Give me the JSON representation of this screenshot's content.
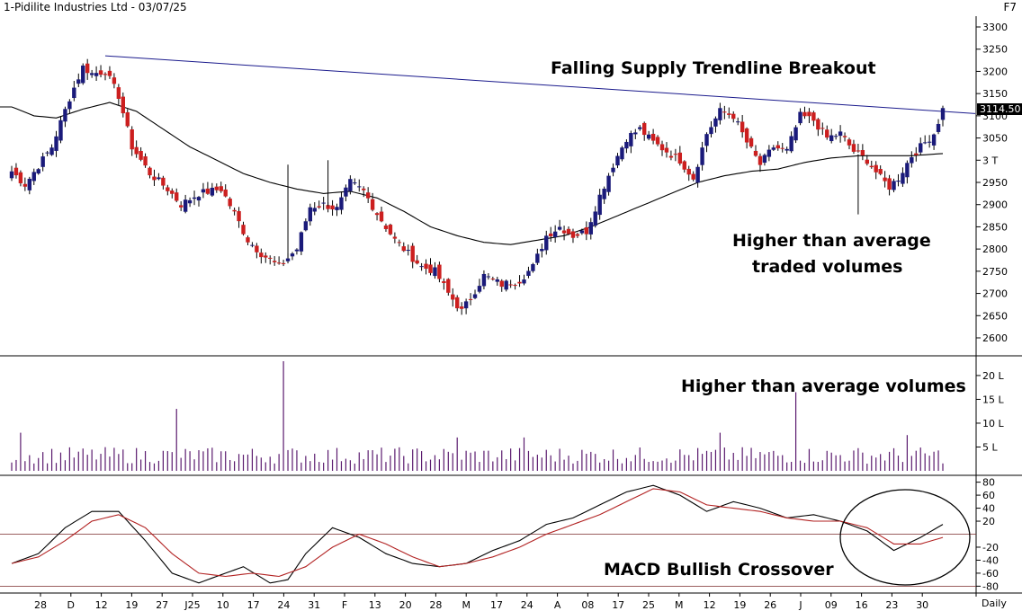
{
  "header": {
    "title": "1-Pidilite Industries Ltd - 03/07/25",
    "shortcut": "F7"
  },
  "annotations": {
    "trendline": "Falling Supply Trendline Breakout",
    "price_volume_1": "Higher than average",
    "price_volume_2": "traded volumes",
    "volume": "Higher than average volumes",
    "macd": "MACD Bullish Crossover"
  },
  "periodicity": "Daily",
  "colors": {
    "up_candle": "#1a1a7a",
    "down_candle": "#cc1f1f",
    "moving_average": "#000000",
    "trendline": "#1a1a8c",
    "macd_line": "#000000",
    "signal_line": "#b22222",
    "volume_bar": "#5a1a6e",
    "last_price_badge": "#000000"
  },
  "chart_data": [
    {
      "type": "candlestick",
      "panel": "price",
      "yticks": [
        3300,
        3250,
        3200,
        3150,
        3100,
        3050,
        3000,
        2950,
        2900,
        2850,
        2800,
        2750,
        2700,
        2650,
        2600
      ],
      "ytick_labels": [
        "3300",
        "3250",
        "3200",
        "3150",
        "3100",
        "3050",
        "3 T",
        "2950",
        "2900",
        "2850",
        "2800",
        "2750",
        "2700",
        "2650",
        "2600"
      ],
      "ylim": [
        2560,
        3320
      ],
      "last_price": "3114.50",
      "x_labels": [
        "28",
        "D",
        "12",
        "19",
        "27",
        "J25",
        "10",
        "17",
        "24",
        "31",
        "F",
        "13",
        "20",
        "28",
        "M",
        "17",
        "24",
        "A",
        "08",
        "17",
        "25",
        "M",
        "12",
        "19",
        "26",
        "J",
        "09",
        "16",
        "23",
        "30"
      ],
      "anchors": [
        [
          0,
          2975
        ],
        [
          3,
          2945
        ],
        [
          9,
          3030
        ],
        [
          13,
          3140
        ],
        [
          16,
          3210
        ],
        [
          18,
          3195
        ],
        [
          21,
          3200
        ],
        [
          24,
          3145
        ],
        [
          27,
          3030
        ],
        [
          31,
          2970
        ],
        [
          35,
          2935
        ],
        [
          38,
          2900
        ],
        [
          42,
          2925
        ],
        [
          47,
          2935
        ],
        [
          50,
          2880
        ],
        [
          53,
          2820
        ],
        [
          56,
          2790
        ],
        [
          60,
          2760
        ],
        [
          64,
          2800
        ],
        [
          67,
          2895
        ],
        [
          70,
          2900
        ],
        [
          73,
          2890
        ],
        [
          76,
          2950
        ],
        [
          79,
          2930
        ],
        [
          82,
          2880
        ],
        [
          86,
          2820
        ],
        [
          89,
          2790
        ],
        [
          92,
          2760
        ],
        [
          95,
          2750
        ],
        [
          98,
          2700
        ],
        [
          101,
          2660
        ],
        [
          103,
          2690
        ],
        [
          106,
          2740
        ],
        [
          110,
          2720
        ],
        [
          114,
          2730
        ],
        [
          117,
          2760
        ],
        [
          120,
          2830
        ],
        [
          123,
          2850
        ],
        [
          126,
          2830
        ],
        [
          129,
          2840
        ],
        [
          132,
          2920
        ],
        [
          135,
          2990
        ],
        [
          138,
          3050
        ],
        [
          141,
          3070
        ],
        [
          144,
          3040
        ],
        [
          147,
          3020
        ],
        [
          150,
          3000
        ],
        [
          153,
          2960
        ],
        [
          156,
          3060
        ],
        [
          159,
          3110
        ],
        [
          162,
          3100
        ],
        [
          165,
          3040
        ],
        [
          168,
          2990
        ],
        [
          171,
          3030
        ],
        [
          174,
          3020
        ],
        [
          177,
          3100
        ],
        [
          180,
          3090
        ],
        [
          183,
          3050
        ],
        [
          186,
          3060
        ],
        [
          189,
          3020
        ],
        [
          192,
          3000
        ],
        [
          195,
          2960
        ],
        [
          197,
          2940
        ],
        [
          199,
          2960
        ],
        [
          202,
          3010
        ],
        [
          205,
          3040
        ],
        [
          207,
          3060
        ],
        [
          209,
          3114.5
        ]
      ],
      "ma_anchors": [
        [
          0,
          3120
        ],
        [
          5,
          3100
        ],
        [
          10,
          3095
        ],
        [
          16,
          3115
        ],
        [
          22,
          3130
        ],
        [
          28,
          3110
        ],
        [
          34,
          3070
        ],
        [
          40,
          3030
        ],
        [
          46,
          3000
        ],
        [
          52,
          2970
        ],
        [
          58,
          2950
        ],
        [
          64,
          2935
        ],
        [
          70,
          2925
        ],
        [
          76,
          2930
        ],
        [
          82,
          2915
        ],
        [
          88,
          2885
        ],
        [
          94,
          2850
        ],
        [
          100,
          2830
        ],
        [
          106,
          2815
        ],
        [
          112,
          2810
        ],
        [
          118,
          2820
        ],
        [
          124,
          2830
        ],
        [
          130,
          2850
        ],
        [
          136,
          2875
        ],
        [
          142,
          2900
        ],
        [
          148,
          2925
        ],
        [
          154,
          2950
        ],
        [
          160,
          2965
        ],
        [
          166,
          2975
        ],
        [
          172,
          2980
        ],
        [
          178,
          2995
        ],
        [
          184,
          3005
        ],
        [
          190,
          3010
        ],
        [
          196,
          3010
        ],
        [
          202,
          3010
        ],
        [
          209,
          3015
        ]
      ],
      "trendline": [
        [
          21,
          3235
        ],
        [
          209,
          3110
        ]
      ],
      "wick_spikes": [
        [
          190,
          2878
        ],
        [
          62,
          2990
        ],
        [
          71,
          3000
        ]
      ]
    },
    {
      "type": "bar",
      "panel": "volume",
      "yticks": [
        5,
        10,
        15,
        20
      ],
      "ytick_labels": [
        "5 L",
        "10 L",
        "15 L",
        "20 L"
      ],
      "ylim": [
        0,
        23
      ],
      "unit": "L",
      "spikes": [
        [
          2,
          8
        ],
        [
          37,
          13
        ],
        [
          61,
          23
        ],
        [
          100,
          7
        ],
        [
          115,
          7
        ],
        [
          159,
          8
        ],
        [
          176,
          16.5
        ],
        [
          201,
          7.5
        ]
      ]
    },
    {
      "type": "line",
      "panel": "macd",
      "yticks": [
        80,
        60,
        40,
        20,
        -20,
        -40,
        -60,
        -80
      ],
      "ytick_labels": [
        "80",
        "60",
        "40",
        "20",
        "-20",
        "-40",
        "-60",
        "-80"
      ],
      "ylim": [
        -85,
        85
      ],
      "zero_line": 0,
      "series": [
        {
          "role": "macd",
          "anchors": [
            [
              0,
              -45
            ],
            [
              6,
              -30
            ],
            [
              12,
              10
            ],
            [
              18,
              35
            ],
            [
              24,
              35
            ],
            [
              30,
              -10
            ],
            [
              36,
              -60
            ],
            [
              42,
              -75
            ],
            [
              48,
              -60
            ],
            [
              52,
              -50
            ],
            [
              58,
              -75
            ],
            [
              62,
              -70
            ],
            [
              66,
              -30
            ],
            [
              72,
              10
            ],
            [
              78,
              -5
            ],
            [
              84,
              -30
            ],
            [
              90,
              -45
            ],
            [
              96,
              -50
            ],
            [
              102,
              -45
            ],
            [
              108,
              -25
            ],
            [
              114,
              -10
            ],
            [
              120,
              15
            ],
            [
              126,
              25
            ],
            [
              132,
              45
            ],
            [
              138,
              65
            ],
            [
              144,
              75
            ],
            [
              150,
              60
            ],
            [
              156,
              35
            ],
            [
              162,
              50
            ],
            [
              168,
              40
            ],
            [
              174,
              25
            ],
            [
              180,
              30
            ],
            [
              186,
              20
            ],
            [
              192,
              5
            ],
            [
              198,
              -25
            ],
            [
              204,
              -5
            ],
            [
              209,
              15
            ]
          ]
        },
        {
          "role": "signal",
          "anchors": [
            [
              0,
              -45
            ],
            [
              6,
              -35
            ],
            [
              12,
              -10
            ],
            [
              18,
              20
            ],
            [
              24,
              30
            ],
            [
              30,
              10
            ],
            [
              36,
              -30
            ],
            [
              42,
              -60
            ],
            [
              48,
              -65
            ],
            [
              54,
              -60
            ],
            [
              60,
              -65
            ],
            [
              66,
              -50
            ],
            [
              72,
              -20
            ],
            [
              78,
              0
            ],
            [
              84,
              -15
            ],
            [
              90,
              -35
            ],
            [
              96,
              -50
            ],
            [
              102,
              -45
            ],
            [
              108,
              -35
            ],
            [
              114,
              -20
            ],
            [
              120,
              0
            ],
            [
              126,
              15
            ],
            [
              132,
              30
            ],
            [
              138,
              50
            ],
            [
              144,
              70
            ],
            [
              150,
              65
            ],
            [
              156,
              45
            ],
            [
              162,
              40
            ],
            [
              168,
              35
            ],
            [
              174,
              25
            ],
            [
              180,
              20
            ],
            [
              186,
              20
            ],
            [
              192,
              10
            ],
            [
              198,
              -15
            ],
            [
              204,
              -15
            ],
            [
              209,
              -5
            ]
          ]
        }
      ]
    }
  ]
}
